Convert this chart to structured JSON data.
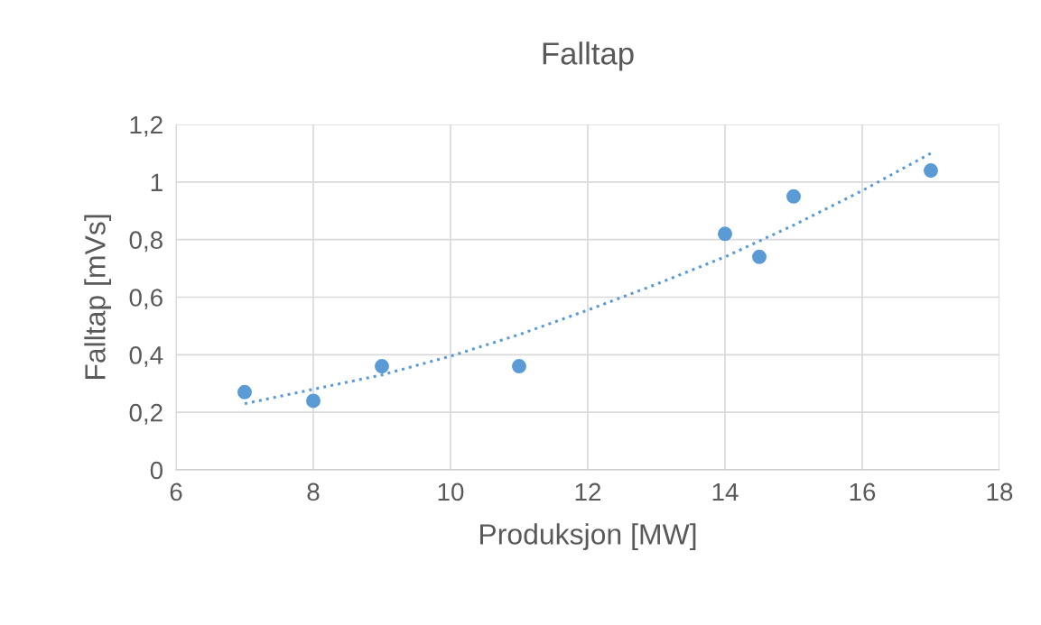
{
  "chart_data": {
    "type": "scatter",
    "title": "Falltap",
    "xlabel": "Produksjon [MW]",
    "ylabel": "Falltap [mVs]",
    "series": [
      {
        "color": "#5b9bd5",
        "x": [
          7,
          8,
          9,
          11,
          14,
          14.5,
          15,
          17
        ],
        "values": [
          0.27,
          0.24,
          0.36,
          0.36,
          0.82,
          0.74,
          0.95,
          1.04
        ],
        "marker": "circle"
      },
      {
        "type": "line",
        "color": "#5b9bd5",
        "line_style": "dotted",
        "x": [
          7,
          8,
          9,
          10,
          11,
          12,
          13,
          14,
          15,
          16,
          17
        ],
        "values": [
          0.23,
          0.28,
          0.33,
          0.395,
          0.47,
          0.555,
          0.645,
          0.74,
          0.85,
          0.97,
          1.1
        ]
      }
    ],
    "xlim": [
      6,
      18
    ],
    "xticks": [
      6,
      8,
      10,
      12,
      14,
      16,
      18
    ],
    "ylim": [
      0,
      1.2
    ],
    "yticks": [
      0,
      {
        "value": 0.2,
        "label": "0,2"
      },
      {
        "value": 0.4,
        "label": "0,4"
      },
      {
        "value": 0.6,
        "label": "0,6"
      },
      {
        "value": 0.8,
        "label": "0,8"
      },
      1,
      {
        "value": 1.2,
        "label": "1,2"
      }
    ],
    "grid": true,
    "legend": false
  }
}
